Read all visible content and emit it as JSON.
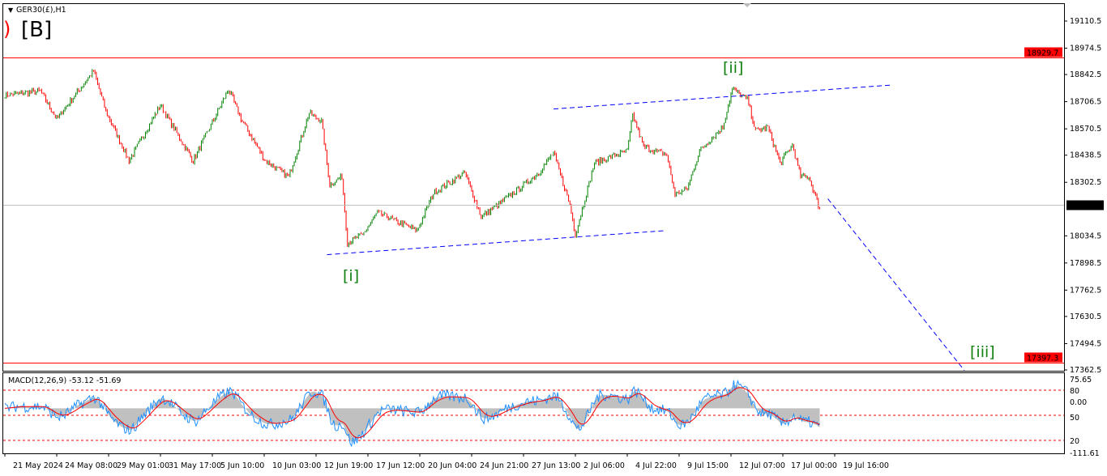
{
  "header": {
    "symbol_label": "GER30(£),H1",
    "corner_label": "[B]"
  },
  "indicator": {
    "label": "MACD(12,26,9) -53.12 -51.69"
  },
  "colors": {
    "bull": "#008000",
    "bear": "#ff0000",
    "level_line": "#ff0000",
    "trend_line": "#0000ff",
    "wave_label": "#118011",
    "macd_hist": "#c0c0c0",
    "macd_signal": "#ff0000",
    "macd_main": "#1e90ff"
  },
  "chart_data": {
    "type": "candlestick",
    "timeframe": "H1",
    "price_axis": {
      "ylim": [
        17362.5,
        19110.5
      ],
      "ticks": [
        "19110.5",
        "18974.5",
        "18842.5",
        "18706.5",
        "18570.5",
        "18438.5",
        "18302.5",
        "18034.5",
        "17898.5",
        "17762.5",
        "17630.5",
        "17494.5",
        "17362.5"
      ]
    },
    "levels": [
      {
        "price": 18929.7,
        "label": "18929.7"
      },
      {
        "price": 17397.3,
        "label": "17397.3"
      }
    ],
    "current_price": {
      "price": 18188.8,
      "label": "18188.8"
    },
    "x_ticks": [
      "21 May 2024",
      "24 May 08:00",
      "29 May 01:00",
      "31 May 17:00",
      "5 Jun 10:00",
      "10 Jun 03:00",
      "12 Jun 19:00",
      "17 Jun 12:00",
      "20 Jun 04:00",
      "24 Jun 21:00",
      "27 Jun 13:00",
      "2 Jul 06:00",
      "4 Jul 22:00",
      "9 Jul 15:00",
      "12 Jul 07:00",
      "17 Jul 00:00",
      "19 Jul 16:00"
    ],
    "bars_per_tick": 38,
    "price_path": [
      [
        0,
        18740
      ],
      [
        26,
        18760
      ],
      [
        38,
        18620
      ],
      [
        65,
        18860
      ],
      [
        74,
        18660
      ],
      [
        91,
        18410
      ],
      [
        114,
        18690
      ],
      [
        138,
        18410
      ],
      [
        164,
        18770
      ],
      [
        173,
        18620
      ],
      [
        191,
        18410
      ],
      [
        208,
        18330
      ],
      [
        223,
        18650
      ],
      [
        232,
        18610
      ],
      [
        238,
        18290
      ],
      [
        247,
        18330
      ],
      [
        251,
        18000
      ],
      [
        262,
        18040
      ],
      [
        273,
        18150
      ],
      [
        302,
        18060
      ],
      [
        314,
        18250
      ],
      [
        337,
        18350
      ],
      [
        349,
        18130
      ],
      [
        373,
        18250
      ],
      [
        391,
        18350
      ],
      [
        402,
        18450
      ],
      [
        414,
        18190
      ],
      [
        418,
        18040
      ],
      [
        432,
        18400
      ],
      [
        456,
        18460
      ],
      [
        460,
        18640
      ],
      [
        468,
        18480
      ],
      [
        485,
        18440
      ],
      [
        491,
        18240
      ],
      [
        500,
        18270
      ],
      [
        509,
        18460
      ],
      [
        526,
        18580
      ],
      [
        533,
        18770
      ],
      [
        544,
        18720
      ],
      [
        550,
        18560
      ],
      [
        559,
        18580
      ],
      [
        568,
        18400
      ],
      [
        577,
        18490
      ],
      [
        583,
        18330
      ],
      [
        589,
        18330
      ],
      [
        597,
        18170
      ]
    ],
    "wave_labels": [
      "[i]",
      "[ii]",
      "[iii]"
    ],
    "trend_lines": [
      {
        "from": [
          236,
          17940
        ],
        "to": [
          483,
          18060
        ]
      },
      {
        "from": [
          402,
          18670
        ],
        "to": [
          650,
          18790
        ]
      },
      {
        "from": [
          603,
          18220
        ],
        "to": [
          703,
          17360
        ]
      }
    ],
    "macd": {
      "params": [
        12,
        26,
        9
      ],
      "main": -53.12,
      "signal": -51.69,
      "ylim": [
        -111.61,
        75.65
      ],
      "ticks": [
        "75.65",
        "0.00",
        "-111.61"
      ],
      "levels": [
        "80",
        "50",
        "20"
      ]
    }
  }
}
